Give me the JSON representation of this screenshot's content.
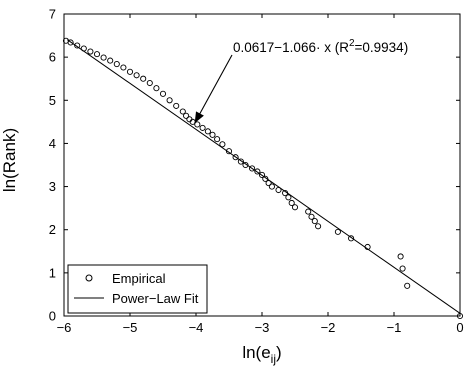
{
  "chart_data": {
    "type": "scatter",
    "title": "",
    "xlabel_main": "ln(e",
    "xlabel_sub": "ij",
    "xlabel_close": ")",
    "ylabel": "ln(Rank)",
    "xlim": [
      -6,
      0
    ],
    "ylim": [
      0,
      7
    ],
    "xticks": [
      -6,
      -5,
      -4,
      -3,
      -2,
      -1,
      0
    ],
    "yticks": [
      0,
      1,
      2,
      3,
      4,
      5,
      6,
      7
    ],
    "grid": false,
    "legend_position": "bottom-left",
    "annotation": {
      "text_main": "0.0617−1.066· x (R",
      "text_sup": "2",
      "text_end": "=0.9934)",
      "arrow_tip": [
        -4.02,
        4.47
      ]
    },
    "fit": {
      "name": "Power−Law Fit",
      "intercept": 0.0617,
      "slope": -1.066,
      "x_range": [
        -5.95,
        0
      ]
    },
    "series": [
      {
        "name": "Empirical",
        "marker": "circle",
        "points": [
          [
            -5.97,
            6.38
          ],
          [
            -5.9,
            6.34
          ],
          [
            -5.8,
            6.27
          ],
          [
            -5.7,
            6.2
          ],
          [
            -5.6,
            6.13
          ],
          [
            -5.5,
            6.07
          ],
          [
            -5.4,
            5.99
          ],
          [
            -5.3,
            5.92
          ],
          [
            -5.2,
            5.84
          ],
          [
            -5.1,
            5.76
          ],
          [
            -5.0,
            5.66
          ],
          [
            -4.9,
            5.58
          ],
          [
            -4.8,
            5.5
          ],
          [
            -4.7,
            5.4
          ],
          [
            -4.6,
            5.28
          ],
          [
            -4.5,
            5.15
          ],
          [
            -4.4,
            5.0
          ],
          [
            -4.3,
            4.87
          ],
          [
            -4.2,
            4.74
          ],
          [
            -4.15,
            4.64
          ],
          [
            -4.1,
            4.56
          ],
          [
            -4.05,
            4.5
          ],
          [
            -3.98,
            4.44
          ],
          [
            -3.9,
            4.36
          ],
          [
            -3.82,
            4.28
          ],
          [
            -3.75,
            4.2
          ],
          [
            -3.68,
            4.1
          ],
          [
            -3.6,
            3.98
          ],
          [
            -3.5,
            3.82
          ],
          [
            -3.4,
            3.68
          ],
          [
            -3.32,
            3.58
          ],
          [
            -3.25,
            3.5
          ],
          [
            -3.15,
            3.42
          ],
          [
            -3.07,
            3.35
          ],
          [
            -3.0,
            3.27
          ],
          [
            -2.95,
            3.18
          ],
          [
            -2.9,
            3.08
          ],
          [
            -2.85,
            3.0
          ],
          [
            -2.75,
            2.92
          ],
          [
            -2.65,
            2.85
          ],
          [
            -2.6,
            2.75
          ],
          [
            -2.55,
            2.62
          ],
          [
            -2.5,
            2.52
          ],
          [
            -2.3,
            2.42
          ],
          [
            -2.25,
            2.3
          ],
          [
            -2.2,
            2.2
          ],
          [
            -2.15,
            2.08
          ],
          [
            -1.85,
            1.95
          ],
          [
            -1.65,
            1.8
          ],
          [
            -1.4,
            1.6
          ],
          [
            -0.9,
            1.38
          ],
          [
            -0.87,
            1.1
          ],
          [
            -0.8,
            0.7
          ],
          [
            0.0,
            0.0
          ]
        ]
      }
    ]
  }
}
